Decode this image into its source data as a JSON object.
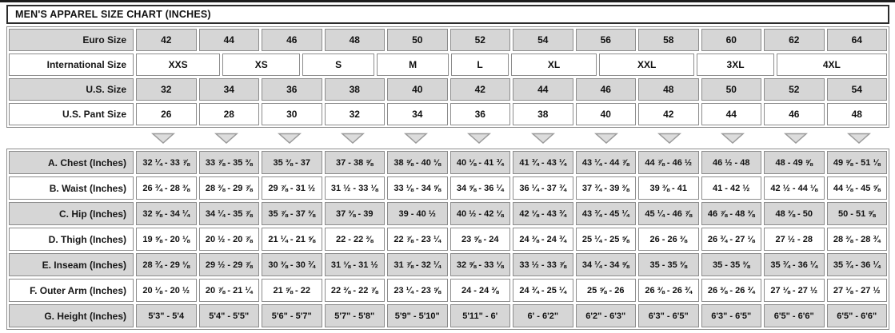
{
  "colors": {
    "cell_gray": "#d6d6d6",
    "cell_border": "#8c8c8c",
    "title_border": "#2b2b2b",
    "top_rule": "#1c1c1c",
    "arrow_fill": "#dcdcdc",
    "arrow_stroke": "#9a9a9a",
    "text": "#161616"
  },
  "chart_data": {
    "type": "table",
    "title": "MEN'S APPAREL SIZE CHART (INCHES)",
    "size_rows": [
      {
        "id": "euro",
        "label": "Euro Size",
        "values": [
          "42",
          "44",
          "46",
          "48",
          "50",
          "52",
          "54",
          "56",
          "58",
          "60",
          "62",
          "64"
        ]
      },
      {
        "id": "international",
        "label": "International Size",
        "values": [
          {
            "text": "XXS",
            "w": 11.5
          },
          {
            "text": "XS",
            "w": 10.6
          },
          {
            "text": "S",
            "w": 9.8
          },
          {
            "text": "M",
            "w": 9.8
          },
          {
            "text": "L",
            "w": 7.8
          },
          {
            "text": "XL",
            "w": 11.7
          },
          {
            "text": "XXL",
            "w": 13.1
          },
          {
            "text": "3XL",
            "w": 10.5
          },
          {
            "text": "4XL",
            "w": 15.2
          }
        ]
      },
      {
        "id": "us",
        "label": "U.S. Size",
        "values": [
          "32",
          "34",
          "36",
          "38",
          "40",
          "42",
          "44",
          "46",
          "48",
          "50",
          "52",
          "54"
        ]
      },
      {
        "id": "us_pant",
        "label": "U.S. Pant Size",
        "values": [
          "26",
          "28",
          "30",
          "32",
          "34",
          "36",
          "38",
          "40",
          "42",
          "44",
          "46",
          "48"
        ]
      }
    ],
    "arrow_columns": 12,
    "measurement_rows": [
      {
        "label": "A. Chest (Inches)",
        "values": [
          "32 ¼ - 33 ⅞",
          "33 ⅞ - 35 ⅜",
          "35 ⅜ - 37",
          "37 - 38 ⅝",
          "38 ⅝ - 40 ⅛",
          "40 ⅛ - 41 ¾",
          "41 ¾ - 43 ¼",
          "43 ¼ - 44 ⅞",
          "44 ⅞ - 46 ½",
          "46 ½ - 48",
          "48 - 49 ⅝",
          "49 ⅝ - 51 ⅛"
        ]
      },
      {
        "label": "B. Waist (Inches)",
        "values": [
          "26 ¾ - 28 ⅜",
          "28 ⅜ - 29 ⅞",
          "29 ⅞ - 31 ½",
          "31 ½ - 33 ⅛",
          "33 ⅛ - 34 ⅝",
          "34 ⅝ - 36 ¼",
          "36 ¼ - 37 ¾",
          "37 ¾ - 39 ⅜",
          "39 ⅜ - 41",
          "41 - 42 ½",
          "42 ½ - 44 ⅛",
          "44 ⅛ - 45 ⅝"
        ]
      },
      {
        "label": "C. Hip (Inches)",
        "values": [
          "32 ⅝ - 34 ¼",
          "34 ¼ - 35 ⅞",
          "35 ⅞ - 37 ⅜",
          "37 ⅜ - 39",
          "39 - 40 ½",
          "40 ½ - 42 ⅛",
          "42 ⅛ - 43 ¾",
          "43 ¾ - 45 ¼",
          "45 ¼ - 46 ⅞",
          "46 ⅞ - 48 ⅜",
          "48 ⅜ - 50",
          "50 - 51 ⅝"
        ]
      },
      {
        "label": "D. Thigh (Inches)",
        "values": [
          "19 ⅝ - 20 ⅛",
          "20 ½ - 20 ⅞",
          "21 ¼ - 21 ⅝",
          "22 - 22 ⅜",
          "22 ⅞ - 23 ¼",
          "23 ⅝ - 24",
          "24 ⅜ - 24 ¾",
          "25 ¼ - 25 ⅝",
          "26 - 26 ⅜",
          "26 ¾ - 27 ⅛",
          "27 ½ - 28",
          "28 ⅜ - 28 ¾"
        ]
      },
      {
        "label": "E. Inseam (Inches)",
        "values": [
          "28 ¾ - 29 ⅛",
          "29 ½ - 29 ⅞",
          "30 ⅜ - 30 ¾",
          "31 ⅛ - 31 ½",
          "31 ⅞ - 32 ¼",
          "32 ⅝ - 33 ⅛",
          "33 ½ - 33 ⅞",
          "34 ¼ - 34 ⅝",
          "35 - 35 ⅜",
          "35 - 35 ⅜",
          "35 ¾ - 36 ¼",
          "35 ¾ - 36 ¼"
        ]
      },
      {
        "label": "F. Outer Arm (Inches)",
        "values": [
          "20 ⅛ - 20 ½",
          "20 ⅞ - 21 ¼",
          "21 ⅝ - 22",
          "22 ⅜ - 22 ⅞",
          "23 ¼ - 23 ⅝",
          "24 - 24 ⅜",
          "24 ¾ - 25 ¼",
          "25 ⅝ - 26",
          "26 ⅜ - 26 ¾",
          "26 ⅜ - 26 ¾",
          "27 ⅛ - 27 ½",
          "27 ⅛ - 27 ½"
        ]
      },
      {
        "label": "G. Height (Inches)",
        "values": [
          "5'3\" - 5'4",
          "5'4\" - 5'5\"",
          "5'6\" - 5'7\"",
          "5'7\" - 5'8\"",
          "5'9\" - 5'10\"",
          "5'11\" - 6'",
          "6' - 6'2\"",
          "6'2\" - 6'3\"",
          "6'3\" - 6'5\"",
          "6'3\" - 6'5\"",
          "6'5\" - 6'6\"",
          "6'5\" - 6'6\""
        ]
      }
    ]
  }
}
